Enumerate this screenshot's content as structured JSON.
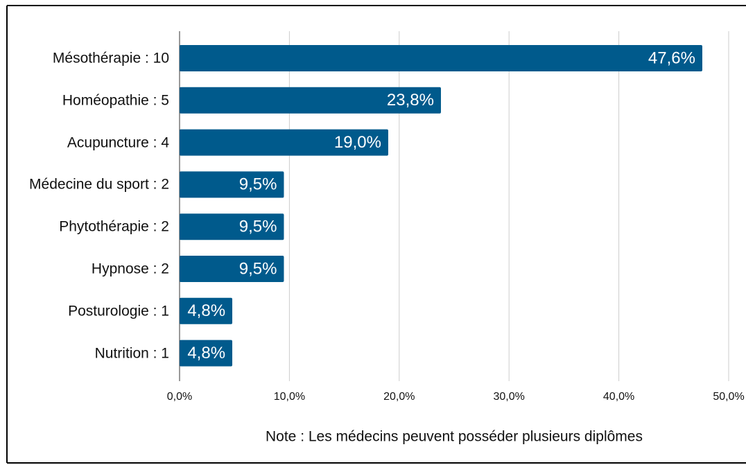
{
  "chart_data": {
    "type": "hbar",
    "categories": [
      "Mésothérapie : 10",
      "Homéopathie : 5",
      "Acupuncture : 4",
      "Médecine du sport : 2",
      "Phytothérapie : 2",
      "Hypnose : 2",
      "Posturologie : 1",
      "Nutrition : 1"
    ],
    "values": [
      47.6,
      23.8,
      19.0,
      9.5,
      9.5,
      9.5,
      4.8,
      4.8
    ],
    "value_labels": [
      "47,6%",
      "23,8%",
      "19,0%",
      "9,5%",
      "9,5%",
      "9,5%",
      "4,8%",
      "4,8%"
    ],
    "color": "#005a8c",
    "xlim": [
      0,
      50
    ],
    "xticks": [
      {
        "value": 0,
        "label": "0,0%"
      },
      {
        "value": 10,
        "label": "10,0%"
      },
      {
        "value": 20,
        "label": "20,0%"
      },
      {
        "value": 30,
        "label": "30,0%"
      },
      {
        "value": 40,
        "label": "40,0%"
      },
      {
        "value": 50,
        "label": "50,0%"
      }
    ],
    "grid": true,
    "annotation": "Note : Les médecins peuvent posséder plusieurs diplômes"
  }
}
